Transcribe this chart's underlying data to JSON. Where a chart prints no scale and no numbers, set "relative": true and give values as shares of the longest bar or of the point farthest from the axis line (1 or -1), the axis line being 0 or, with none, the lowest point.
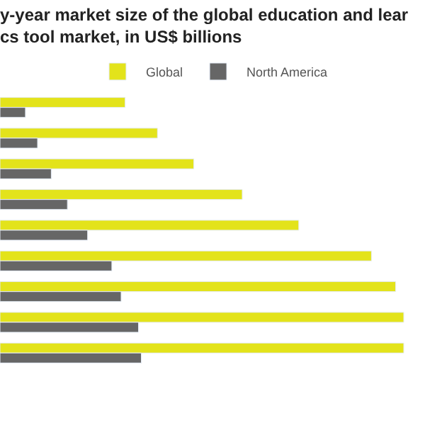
{
  "chart_data": {
    "type": "bar",
    "orientation": "horizontal",
    "relative": true,
    "title": "y-year market size of the global education and lear\ncs tool market, in US$ billions",
    "categories": [
      null,
      null,
      null,
      null,
      null,
      null,
      null,
      null,
      null
    ],
    "series": [
      {
        "name": "Global",
        "color": "#e3e31b",
        "values": [
          0.31,
          0.39,
          0.48,
          0.6,
          0.74,
          0.92,
          0.98,
          1,
          1
        ]
      },
      {
        "name": "North America",
        "color": "#666666",
        "values": [
          0.063,
          0.093,
          0.127,
          0.167,
          0.217,
          0.277,
          0.3,
          0.343,
          0.35
        ]
      }
    ],
    "legend": "top"
  }
}
